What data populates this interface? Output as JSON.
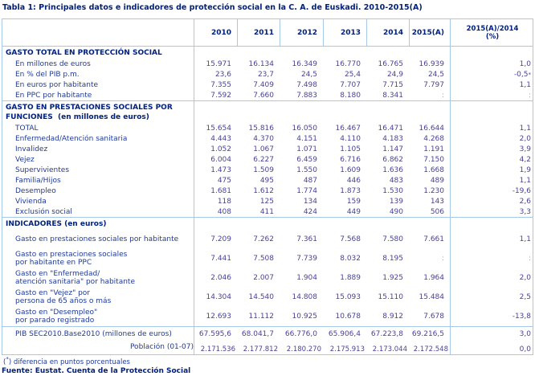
{
  "title": "Tabla 1: Principales datos e indicadores de protección social en la C. A. de Euskadi. 2010-2015(A)",
  "header": {
    "years": [
      "2010",
      "2011",
      "2012",
      "2013",
      "2014",
      "2015(A)"
    ],
    "pct_line1": "2015(A)/2014",
    "pct_line2": "(%)"
  },
  "sections": [
    {
      "heading_lines": [
        "GASTO TOTAL EN PROTECCIÓN SOCIAL"
      ],
      "tall": false,
      "rows": [
        {
          "label_lines": [
            "En millones de euros"
          ],
          "values": [
            "15.971",
            "16.134",
            "16.349",
            "16.770",
            "16.765",
            "16.939",
            "1,0"
          ]
        },
        {
          "label_lines": [
            "En % del PIB p.m."
          ],
          "values": [
            "23,6",
            "23,7",
            "24,5",
            "25,4",
            "24,9",
            "24,5",
            "-0,5*"
          ]
        },
        {
          "label_lines": [
            "En euros por habitante"
          ],
          "values": [
            "7.355",
            "7.409",
            "7.498",
            "7.707",
            "7.715",
            "7.797",
            "1,1"
          ]
        },
        {
          "label_lines": [
            "En PPC por habitante"
          ],
          "values": [
            "7.592",
            "7.660",
            "7.883",
            "8.180",
            "8.341",
            ":",
            ":"
          ]
        }
      ]
    },
    {
      "heading_lines": [
        "GASTO EN PRESTACIONES SOCIALES POR",
        "FUNCIONES  (en millones de euros)"
      ],
      "tall": false,
      "rows": [
        {
          "label_lines": [
            "TOTAL"
          ],
          "values": [
            "15.654",
            "15.816",
            "16.050",
            "16.467",
            "16.471",
            "16.644",
            "1,1"
          ]
        },
        {
          "label_lines": [
            "Enfermedad/Atención sanitaria"
          ],
          "values": [
            "4.443",
            "4.370",
            "4.151",
            "4.110",
            "4.183",
            "4.268",
            "2,0"
          ]
        },
        {
          "label_lines": [
            "Invalidez"
          ],
          "values": [
            "1.052",
            "1.067",
            "1.071",
            "1.105",
            "1.147",
            "1.191",
            "3,9"
          ]
        },
        {
          "label_lines": [
            "Vejez"
          ],
          "values": [
            "6.004",
            "6.227",
            "6.459",
            "6.716",
            "6.862",
            "7.150",
            "4,2"
          ]
        },
        {
          "label_lines": [
            "Supervivientes"
          ],
          "values": [
            "1.473",
            "1.509",
            "1.550",
            "1.609",
            "1.636",
            "1.668",
            "1,9"
          ]
        },
        {
          "label_lines": [
            "Familia/Hijos"
          ],
          "values": [
            "475",
            "495",
            "487",
            "446",
            "483",
            "489",
            "1,1"
          ]
        },
        {
          "label_lines": [
            "Desempleo"
          ],
          "values": [
            "1.681",
            "1.612",
            "1.774",
            "1.873",
            "1.530",
            "1.230",
            "-19,6"
          ]
        },
        {
          "label_lines": [
            "Vivienda"
          ],
          "values": [
            "118",
            "125",
            "134",
            "159",
            "139",
            "143",
            "2,6"
          ]
        },
        {
          "label_lines": [
            "Exclusión social"
          ],
          "values": [
            "408",
            "411",
            "424",
            "449",
            "490",
            "506",
            "3,3"
          ]
        }
      ]
    },
    {
      "heading_lines": [
        "INDICADORES (en euros)"
      ],
      "tall": true,
      "rows": [
        {
          "label_lines": [
            "Gasto en prestaciones sociales por habitante"
          ],
          "values": [
            "7.209",
            "7.262",
            "7.361",
            "7.568",
            "7.580",
            "7.661",
            "1,1"
          ]
        },
        {
          "label_lines": [
            "Gasto en prestaciones sociales",
            "por habitante en PPC"
          ],
          "values": [
            "7.441",
            "7.508",
            "7.739",
            "8.032",
            "8.195",
            ":",
            ":"
          ]
        },
        {
          "label_lines": [
            "Gasto en \"Enfermedad/",
            "atención sanitaria\" por habitante"
          ],
          "values": [
            "2.046",
            "2.007",
            "1.904",
            "1.889",
            "1.925",
            "1.964",
            "2,0"
          ]
        },
        {
          "label_lines": [
            "Gasto en \"Vejez\" por",
            "persona de 65 años o más"
          ],
          "values": [
            "14.304",
            "14.540",
            "14.808",
            "15.093",
            "15.110",
            "15.484",
            "2,5"
          ]
        },
        {
          "label_lines": [
            "Gasto en \"Desempleo\"",
            "por parado registrado"
          ],
          "values": [
            "12.693",
            "11.112",
            "10.925",
            "10.678",
            "8.912",
            "7.678",
            "-13,8"
          ]
        }
      ]
    }
  ],
  "bottom_rows": [
    {
      "label_lines": [
        "PIB SEC2010.Base2010 (millones de euros)"
      ],
      "values": [
        "67.595,6",
        "68.041,7",
        "66.776,0",
        "65.906,4",
        "67.223,8",
        "69.216,5",
        "3,0"
      ],
      "tight": false
    },
    {
      "label_lines": [
        "Población (01-07)"
      ],
      "values": [
        "2.171.536",
        "2.177.812",
        "2.180.270",
        "2.175.913",
        "2.173.044",
        "2.172.548",
        "0,0"
      ],
      "tight": true
    }
  ],
  "footnote": "(*)  diferencia en puntos porcentuales",
  "source": "Fuente: Eustat. Cuenta de la Protección Social",
  "colors": {
    "border": "#a6c9e9",
    "heading": "#00217e",
    "label": "#1f3a96",
    "value": "#4a4296"
  }
}
